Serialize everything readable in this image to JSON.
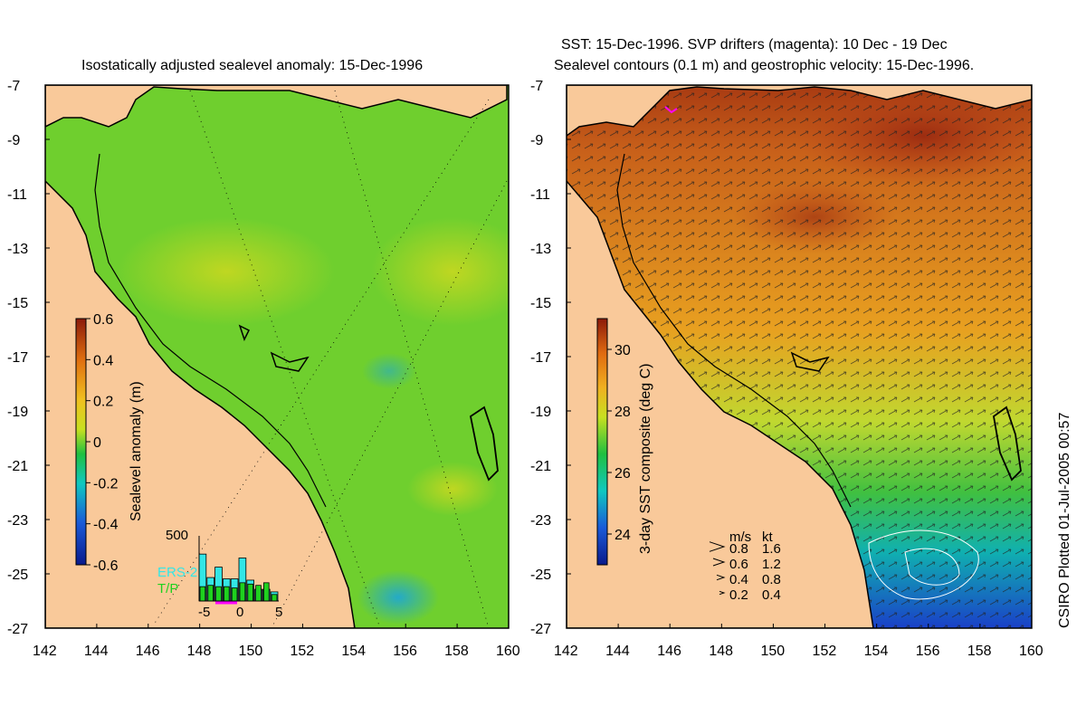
{
  "left_panel": {
    "title": "Isostatically adjusted sealevel anomaly: 15-Dec-1996",
    "colorbar": {
      "label": "Sealevel anomaly (m)",
      "ticks": [
        "0.6",
        "0.4",
        "0.2",
        "0",
        "-0.2",
        "-0.4",
        "-0.6"
      ],
      "range": [
        -0.6,
        0.6
      ]
    },
    "histogram": {
      "max_label": "500",
      "x_ticks": [
        "-5",
        "0",
        "5"
      ],
      "legend": [
        "ERS-2",
        "T/P"
      ],
      "colors": {
        "ERS-2": "#33e6e6",
        "T/P": "#1fd11f"
      },
      "ers2_counts": [
        360,
        180,
        260,
        170,
        170,
        330,
        160,
        90,
        90,
        70
      ],
      "tp_counts": [
        110,
        120,
        110,
        110,
        100,
        140,
        130,
        120,
        140,
        50
      ]
    }
  },
  "right_panel": {
    "title_line1": "SST: 15-Dec-1996. SVP drifters (magenta): 10 Dec - 19 Dec",
    "title_line2": "Sealevel contours (0.1 m) and geostrophic velocity: 15-Dec-1996.",
    "colorbar": {
      "label": "3-day SST composite (deg C)",
      "ticks": [
        "30",
        "28",
        "26",
        "24"
      ],
      "range": [
        23,
        31
      ]
    },
    "velocity_legend": {
      "header_ms": "m/s",
      "header_kt": "kt",
      "rows": [
        {
          "ms": "0.8",
          "kt": "1.6"
        },
        {
          "ms": "0.6",
          "kt": "1.2"
        },
        {
          "ms": "0.4",
          "kt": "0.8"
        },
        {
          "ms": "0.2",
          "kt": "0.4"
        }
      ]
    }
  },
  "axes": {
    "lat_ticks": [
      "-7",
      "-9",
      "-11",
      "-13",
      "-15",
      "-17",
      "-19",
      "-21",
      "-23",
      "-25",
      "-27"
    ],
    "lon_ticks": [
      "142",
      "144",
      "146",
      "148",
      "150",
      "152",
      "154",
      "156",
      "158",
      "160"
    ],
    "lat_range": [
      -27,
      -7
    ],
    "lon_range": [
      142,
      160
    ]
  },
  "credit": "CSIRO Plotted 01-Jul-2005 00:57",
  "colors": {
    "land": "#f9c99a",
    "ocean_low": "#1fb84d",
    "ocean_mid": "#7fd12a",
    "sst_warm": "#d8701a",
    "sst_hot": "#a02a10",
    "sst_cool": "#1a4fc8"
  }
}
